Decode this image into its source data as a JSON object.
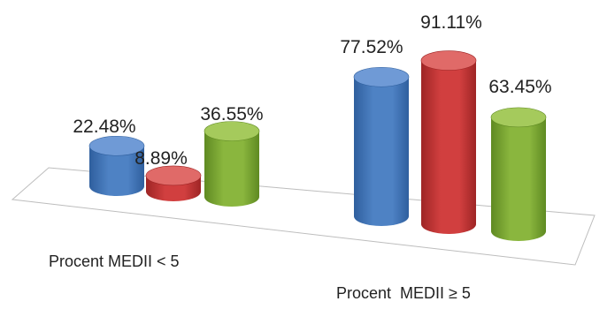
{
  "chart_data": {
    "type": "bar",
    "style": "3d-cylinder",
    "grid": false,
    "legend": "none",
    "categories": [
      "Procent MEDII < 5",
      "Procent  MEDII ≥ 5"
    ],
    "series": [
      {
        "values": [
          22.48,
          77.52
        ],
        "labels": [
          "22.48%",
          "77.52%"
        ],
        "color": "#4e82c4",
        "color_dark": "#2f5f9e",
        "color_top": "#6f9ad6"
      },
      {
        "values": [
          8.89,
          91.11
        ],
        "labels": [
          "8.89%",
          "91.11%"
        ],
        "color": "#d13f3f",
        "color_dark": "#9e2525",
        "color_top": "#e06a68"
      },
      {
        "values": [
          36.55,
          63.45
        ],
        "labels": [
          "36.55%",
          "63.45%"
        ],
        "color": "#8ab63e",
        "color_dark": "#5f8a22",
        "color_top": "#a5ca5c"
      }
    ]
  }
}
